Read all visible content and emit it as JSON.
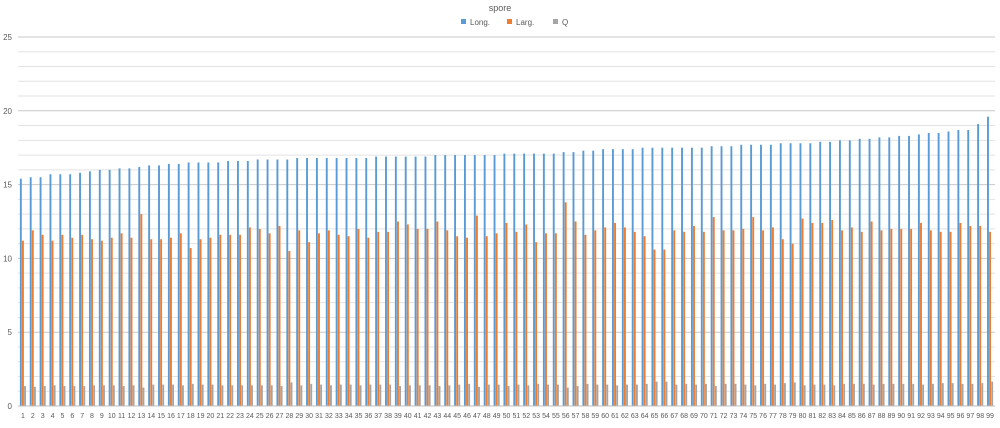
{
  "chart_data": {
    "type": "bar",
    "title": "spore",
    "xlabel": "",
    "ylabel": "",
    "ylim": [
      0,
      25
    ],
    "yticks": [
      0,
      5,
      10,
      15,
      20,
      25
    ],
    "grid": true,
    "legend": "top-center",
    "categories": [
      "1",
      "2",
      "3",
      "4",
      "5",
      "6",
      "7",
      "8",
      "9",
      "10",
      "11",
      "12",
      "13",
      "14",
      "15",
      "16",
      "17",
      "18",
      "19",
      "20",
      "21",
      "22",
      "23",
      "24",
      "25",
      "26",
      "27",
      "28",
      "29",
      "30",
      "31",
      "32",
      "33",
      "34",
      "35",
      "36",
      "37",
      "38",
      "39",
      "40",
      "41",
      "42",
      "43",
      "44",
      "45",
      "46",
      "47",
      "48",
      "49",
      "50",
      "51",
      "52",
      "53",
      "54",
      "55",
      "56",
      "57",
      "58",
      "59",
      "60",
      "61",
      "62",
      "63",
      "64",
      "65",
      "66",
      "67",
      "68",
      "69",
      "70",
      "71",
      "72",
      "73",
      "74",
      "75",
      "76",
      "77",
      "78",
      "79",
      "80",
      "81",
      "82",
      "83",
      "84",
      "85",
      "86",
      "87",
      "88",
      "89",
      "90",
      "91",
      "92",
      "93",
      "94",
      "95",
      "96",
      "97",
      "98",
      "99"
    ],
    "series": [
      {
        "name": "Long.",
        "color": "#5b9bd5",
        "values": [
          15.4,
          15.5,
          15.5,
          15.7,
          15.7,
          15.7,
          15.8,
          15.9,
          16.0,
          16.0,
          16.1,
          16.1,
          16.2,
          16.3,
          16.3,
          16.4,
          16.4,
          16.5,
          16.5,
          16.5,
          16.5,
          16.6,
          16.6,
          16.6,
          16.7,
          16.7,
          16.7,
          16.7,
          16.8,
          16.8,
          16.8,
          16.8,
          16.8,
          16.8,
          16.8,
          16.8,
          16.9,
          16.9,
          16.9,
          16.9,
          16.9,
          16.9,
          17.0,
          17.0,
          17.0,
          17.0,
          17.0,
          17.0,
          17.0,
          17.1,
          17.1,
          17.1,
          17.1,
          17.1,
          17.1,
          17.2,
          17.2,
          17.3,
          17.3,
          17.4,
          17.4,
          17.4,
          17.4,
          17.5,
          17.5,
          17.5,
          17.5,
          17.5,
          17.5,
          17.5,
          17.6,
          17.6,
          17.6,
          17.7,
          17.7,
          17.7,
          17.7,
          17.8,
          17.8,
          17.8,
          17.8,
          17.9,
          17.9,
          18.0,
          18.0,
          18.1,
          18.1,
          18.2,
          18.2,
          18.3,
          18.3,
          18.4,
          18.5,
          18.5,
          18.6,
          18.7,
          18.7,
          19.1,
          19.6
        ]
      },
      {
        "name": "Larg.",
        "color": "#ed7d31",
        "values": [
          11.2,
          11.9,
          11.6,
          11.2,
          11.6,
          11.4,
          11.6,
          11.3,
          11.2,
          11.4,
          11.7,
          11.4,
          13.0,
          11.3,
          11.3,
          11.4,
          11.7,
          10.7,
          11.3,
          11.4,
          11.6,
          11.6,
          11.6,
          12.1,
          12.0,
          11.7,
          12.2,
          10.5,
          11.9,
          11.1,
          11.7,
          11.9,
          11.6,
          11.5,
          12.0,
          11.4,
          11.8,
          11.8,
          12.5,
          12.3,
          12.0,
          12.0,
          12.5,
          11.9,
          11.5,
          11.4,
          12.9,
          11.5,
          11.7,
          12.4,
          11.8,
          12.3,
          11.1,
          11.7,
          11.7,
          13.8,
          12.5,
          11.6,
          11.9,
          12.1,
          12.4,
          12.1,
          11.8,
          11.5,
          10.6,
          10.6,
          11.9,
          11.8,
          12.2,
          11.8,
          12.8,
          11.9,
          11.9,
          12.0,
          12.8,
          11.9,
          12.1,
          11.3,
          11.0,
          12.7,
          12.4,
          12.4,
          12.6,
          11.9,
          12.1,
          11.8,
          12.5,
          11.9,
          12.0,
          12.0,
          12.0,
          12.4,
          11.9,
          11.8,
          11.8,
          12.4,
          12.2,
          12.2,
          11.8
        ]
      },
      {
        "name": "Q",
        "color": "#a5a5a5",
        "values": [
          1.35,
          1.3,
          1.35,
          1.4,
          1.35,
          1.35,
          1.35,
          1.4,
          1.4,
          1.4,
          1.35,
          1.4,
          1.25,
          1.45,
          1.45,
          1.45,
          1.4,
          1.5,
          1.45,
          1.45,
          1.4,
          1.4,
          1.4,
          1.4,
          1.4,
          1.4,
          1.35,
          1.6,
          1.4,
          1.5,
          1.45,
          1.4,
          1.45,
          1.45,
          1.4,
          1.45,
          1.45,
          1.45,
          1.35,
          1.4,
          1.4,
          1.4,
          1.35,
          1.4,
          1.45,
          1.5,
          1.3,
          1.45,
          1.45,
          1.35,
          1.45,
          1.4,
          1.5,
          1.45,
          1.45,
          1.25,
          1.35,
          1.5,
          1.45,
          1.45,
          1.4,
          1.45,
          1.45,
          1.5,
          1.65,
          1.65,
          1.45,
          1.5,
          1.45,
          1.5,
          1.35,
          1.5,
          1.5,
          1.45,
          1.4,
          1.5,
          1.45,
          1.55,
          1.6,
          1.4,
          1.45,
          1.45,
          1.4,
          1.5,
          1.5,
          1.5,
          1.45,
          1.5,
          1.5,
          1.5,
          1.5,
          1.45,
          1.5,
          1.55,
          1.55,
          1.5,
          1.5,
          1.55,
          1.65
        ]
      }
    ]
  }
}
